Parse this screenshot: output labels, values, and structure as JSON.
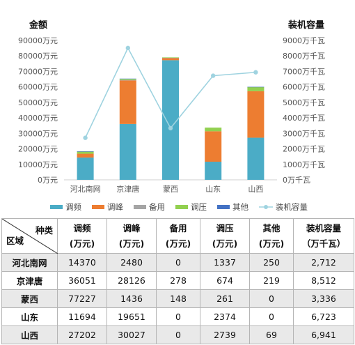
{
  "chart_data": {
    "type": "bar",
    "stacked": true,
    "categories": [
      "河北南网",
      "京津唐",
      "蒙西",
      "山东",
      "山西"
    ],
    "series": [
      {
        "name": "调频",
        "color": "#4bacc6",
        "values": [
          14370,
          36051,
          77227,
          11694,
          27202
        ]
      },
      {
        "name": "调峰",
        "color": "#ed7d31",
        "values": [
          2480,
          28126,
          1436,
          19651,
          30027
        ]
      },
      {
        "name": "备用",
        "color": "#a5a5a5",
        "values": [
          0,
          278,
          148,
          0,
          0
        ]
      },
      {
        "name": "调压",
        "color": "#92d050",
        "values": [
          1337,
          674,
          261,
          2374,
          2739
        ]
      },
      {
        "name": "其他",
        "color": "#4472c4",
        "values": [
          250,
          219,
          0,
          0,
          69
        ]
      }
    ],
    "line_series": {
      "name": "装机容量",
      "color": "#9fd3e0",
      "axis": "right",
      "values": [
        2712,
        8512,
        3336,
        6723,
        6941
      ]
    },
    "left_axis": {
      "title": "金额",
      "ylim": [
        0,
        90000
      ],
      "ticks": [
        "0万元",
        "10000万元",
        "20000万元",
        "30000万元",
        "40000万元",
        "50000万元",
        "60000万元",
        "70000万元",
        "80000万元",
        "90000万元"
      ]
    },
    "right_axis": {
      "title": "装机容量",
      "ylim": [
        0,
        9000
      ],
      "ticks": [
        "0万千瓦",
        "1000万千瓦",
        "2000万千瓦",
        "3000万千瓦",
        "4000万千瓦",
        "5000万千瓦",
        "6000万千瓦",
        "7000万千瓦",
        "8000万千瓦",
        "9000万千瓦"
      ]
    },
    "legend_position": "bottom",
    "grid": false
  },
  "table": {
    "corner_top": "种类",
    "corner_bottom": "区域",
    "headers": [
      {
        "name": "调频",
        "unit": "(万元)"
      },
      {
        "name": "调峰",
        "unit": "(万元)"
      },
      {
        "name": "备用",
        "unit": "(万元)"
      },
      {
        "name": "调压",
        "unit": "(万元)"
      },
      {
        "name": "其他",
        "unit": "(万元)"
      },
      {
        "name": "装机容量",
        "unit": "（万千瓦）"
      }
    ],
    "rows": [
      {
        "region": "河北南网",
        "cells": [
          "14370",
          "2480",
          "0",
          "1337",
          "250",
          "2,712"
        ]
      },
      {
        "region": "京津唐",
        "cells": [
          "36051",
          "28126",
          "278",
          "674",
          "219",
          "8,512"
        ]
      },
      {
        "region": "蒙西",
        "cells": [
          "77227",
          "1436",
          "148",
          "261",
          "0",
          "3,336"
        ]
      },
      {
        "region": "山东",
        "cells": [
          "11694",
          "19651",
          "0",
          "2374",
          "0",
          "6,723"
        ]
      },
      {
        "region": "山西",
        "cells": [
          "27202",
          "30027",
          "0",
          "2739",
          "69",
          "6,941"
        ]
      }
    ]
  }
}
